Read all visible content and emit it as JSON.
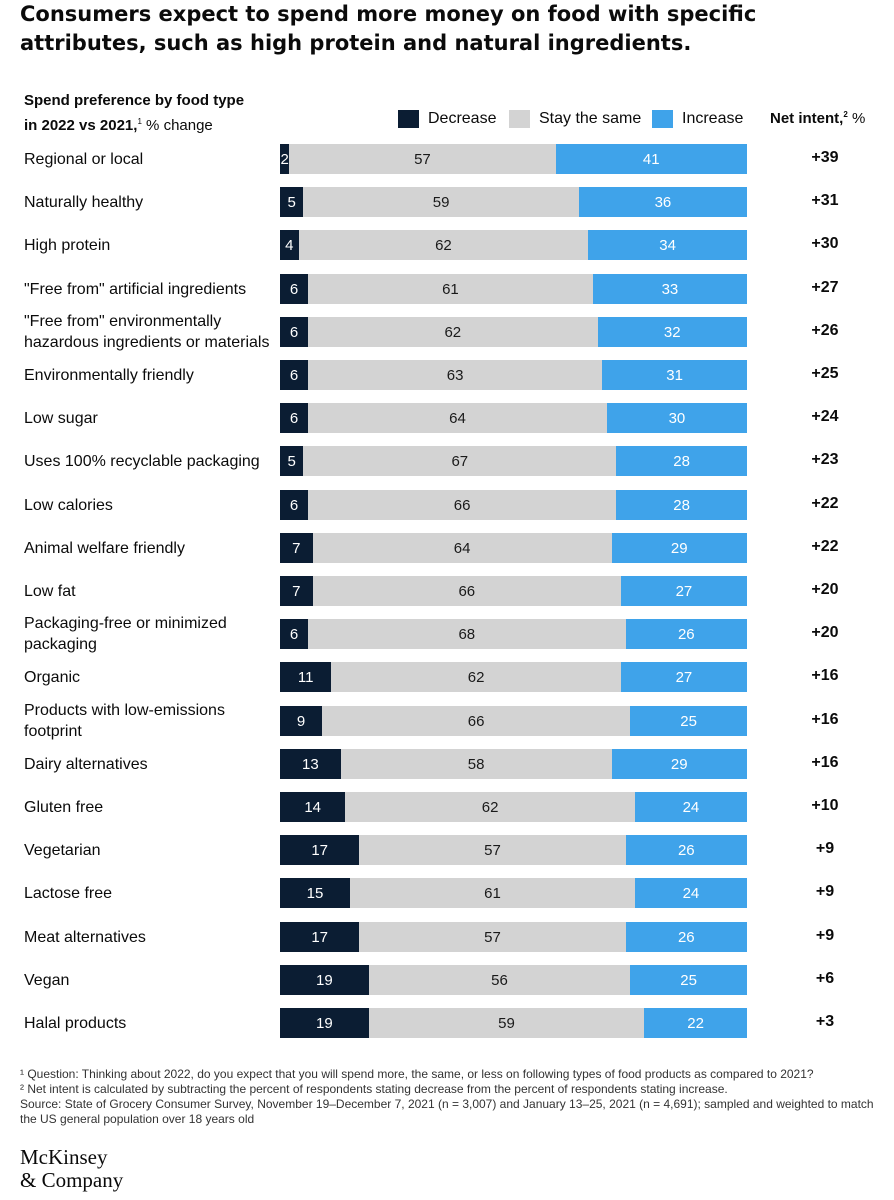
{
  "header": {
    "title": "Consumers expect to spend more money on food with specific attributes, such as high protein and natural ingredients."
  },
  "subtitle": {
    "line1": "Spend preference by food type",
    "line2_bold": "in 2022 vs 2021,",
    "line2_sup": "1",
    "line2_rest": " % change"
  },
  "net_header": {
    "label": "Net intent,",
    "sup": "2",
    "unit": " %"
  },
  "colors": {
    "decrease": "#0b1d33",
    "stay": "#d3d3d3",
    "increase": "#3fa3ea"
  },
  "chart_data": {
    "type": "bar",
    "orientation": "horizontal",
    "stacked": true,
    "legend_position": "top",
    "categories": [
      "Regional or local",
      "Naturally healthy",
      "High protein",
      "\"Free from\" artificial ingredients",
      "\"Free from\" environmentally hazardous ingredients or materials",
      "Environmentally friendly",
      "Low sugar",
      "Uses 100% recyclable packaging",
      "Low calories",
      "Animal welfare friendly",
      "Low fat",
      "Packaging-free or minimized packaging",
      "Organic",
      "Products with low-emissions footprint",
      "Dairy alternatives",
      "Gluten free",
      "Vegetarian",
      "Lactose free",
      "Meat alternatives",
      "Vegan",
      "Halal products"
    ],
    "series": [
      {
        "name": "Decrease",
        "values": [
          2,
          5,
          4,
          6,
          6,
          6,
          6,
          5,
          6,
          7,
          7,
          6,
          11,
          9,
          13,
          14,
          17,
          15,
          17,
          19,
          19
        ]
      },
      {
        "name": "Stay the same",
        "values": [
          57,
          59,
          62,
          61,
          62,
          63,
          64,
          67,
          66,
          64,
          66,
          68,
          62,
          66,
          58,
          62,
          57,
          61,
          57,
          56,
          59
        ]
      },
      {
        "name": "Increase",
        "values": [
          41,
          36,
          34,
          33,
          32,
          31,
          30,
          28,
          28,
          29,
          27,
          26,
          27,
          25,
          29,
          24,
          26,
          24,
          26,
          25,
          22
        ]
      }
    ],
    "net_intent": [
      "+39",
      "+31",
      "+30",
      "+27",
      "+26",
      "+25",
      "+24",
      "+23",
      "+22",
      "+22",
      "+20",
      "+20",
      "+16",
      "+16",
      "+16",
      "+10",
      "+9",
      "+9",
      "+9",
      "+6",
      "+3"
    ]
  },
  "footnotes": {
    "note1": "¹  Question: Thinking about 2022, do you expect that you will spend more, the same, or less on following types of food products as compared to 2021?",
    "note2": "²  Net intent is calculated by subtracting the percent of respondents stating decrease from the percent of respondents stating increase.",
    "source": "Source: State of Grocery Consumer Survey, November 19–December 7, 2021 (n = 3,007) and January 13–25, 2021 (n = 4,691); sampled and weighted to match the US general population over 18 years old"
  },
  "logo": {
    "line1": "McKinsey",
    "line2": "& Company"
  }
}
